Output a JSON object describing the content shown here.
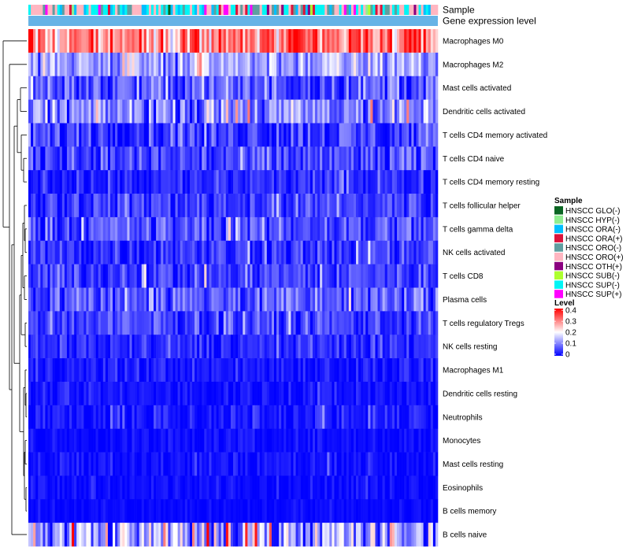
{
  "chart_data": {
    "type": "heatmap",
    "annotation_rows": [
      "Sample",
      "Gene expression level"
    ],
    "rows": [
      "Macrophages M0",
      "Macrophages M2",
      "Mast cells activated",
      "Dendritic cells activated",
      "T cells CD4 memory activated",
      "T cells CD4 naive",
      "T cells CD4 memory resting",
      "T cells follicular helper",
      "T cells gamma delta",
      "NK cells activated",
      "T cells CD8",
      "Plasma cells",
      "T cells regulatory  Tregs",
      "NK cells resting",
      "Macrophages M1",
      "Dendritic cells resting",
      "Neutrophils",
      "Monocytes",
      "Mast cells resting",
      "Eosinophils",
      "B cells memory",
      "B cells naive"
    ],
    "row_mean_levels": [
      0.3,
      0.13,
      0.07,
      0.1,
      0.05,
      0.05,
      0.03,
      0.05,
      0.06,
      0.04,
      0.05,
      0.07,
      0.05,
      0.03,
      0.02,
      0.015,
      0.02,
      0.01,
      0.015,
      0.01,
      0.005,
      0.12
    ],
    "row_spread": [
      0.08,
      0.06,
      0.06,
      0.07,
      0.05,
      0.05,
      0.03,
      0.04,
      0.05,
      0.04,
      0.04,
      0.05,
      0.04,
      0.03,
      0.025,
      0.02,
      0.03,
      0.015,
      0.02,
      0.015,
      0.01,
      0.1
    ],
    "n_samples": 170,
    "sample_groups": [
      {
        "name": "HNSCC GLO(-)",
        "color": "#0b6623"
      },
      {
        "name": "HNSCC HYP(-)",
        "color": "#90ee90"
      },
      {
        "name": "HNSCC ORA(-)",
        "color": "#00bfff"
      },
      {
        "name": "HNSCC ORA(+)",
        "color": "#dc143c"
      },
      {
        "name": "HNSCC ORO(-)",
        "color": "#5f9ea0"
      },
      {
        "name": "HNSCC ORO(+)",
        "color": "#ffb6c1"
      },
      {
        "name": "HNSCC OTH(+)",
        "color": "#8b0080"
      },
      {
        "name": "HNSCC SUB(-)",
        "color": "#adff2f"
      },
      {
        "name": "HNSCC SUP(-)",
        "color": "#00f5f5"
      },
      {
        "name": "HNSCC SUP(+)",
        "color": "#ff00ff"
      }
    ],
    "gene_expression_color": "#66b3e6",
    "colorscale": {
      "low": "#0000ff",
      "mid": "#ffffff",
      "high": "#ff0000",
      "min": 0,
      "mid_value": 0.2,
      "max": 0.4
    },
    "legend": {
      "sample_title": "Sample",
      "level_title": "Level",
      "level_ticks": [
        "0.4",
        "0.3",
        "0.2",
        "0.1",
        "0"
      ],
      "level_tick_values": [
        0.4,
        0.3,
        0.2,
        0.1,
        0
      ]
    },
    "dendrogram": "row clustering tree on left"
  }
}
